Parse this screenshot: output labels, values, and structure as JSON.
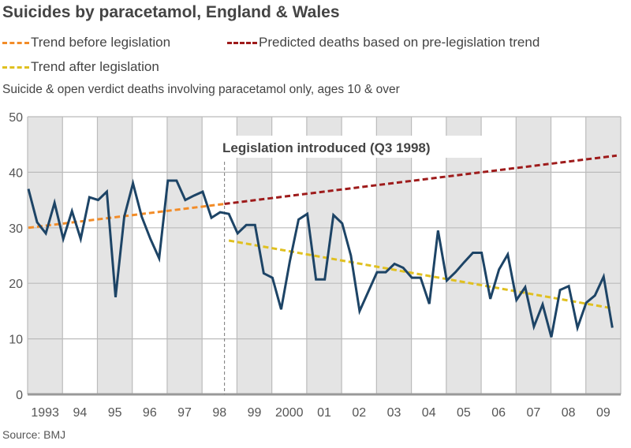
{
  "title": "Suicides by paracetamol, England & Wales",
  "subtitle": "Suicide & open verdict deaths involving paracetamol only, ages 10 & over",
  "source": "Source: BMJ",
  "colors": {
    "series": "#1d4466",
    "trend_before": "#f28c28",
    "predicted": "#9e1b1b",
    "trend_after": "#e0c020",
    "band": "#e4e4e4"
  },
  "chart_data": {
    "type": "line",
    "title": "Suicides by paracetamol, England & Wales",
    "ylim": [
      0,
      50
    ],
    "yticks": [
      0,
      10,
      20,
      30,
      40,
      50
    ],
    "xticklabels": [
      "1993",
      "94",
      "95",
      "96",
      "97",
      "98",
      "99",
      "2000",
      "01",
      "02",
      "03",
      "04",
      "05",
      "06",
      "07",
      "08",
      "09"
    ],
    "x_unit": "quarter, 1993 Q1 to 2009 Q4",
    "grid": true,
    "legend": {
      "position": "top",
      "entries": [
        "Trend before legislation",
        "Predicted deaths based on pre-legislation trend",
        "Trend after legislation"
      ]
    },
    "annotation": {
      "text": "Legislation introduced (Q3 1998)",
      "quarter_index": 22.5
    },
    "series": [
      {
        "values": [
          37,
          31,
          29,
          34.5,
          28,
          33,
          28,
          35.5,
          35,
          36.5,
          17.5,
          32,
          38,
          32,
          28,
          24.5,
          38.5,
          38.5,
          35,
          35.8,
          36.5,
          31.8,
          32.8,
          32.5,
          29,
          30.5,
          30.5,
          21.8,
          21,
          15.3,
          24,
          31.5,
          32.5,
          20.7,
          20.7,
          32.3,
          30.8,
          25,
          15,
          18.5,
          22,
          22,
          23.5,
          22.8,
          21,
          21,
          16.3,
          29.5,
          20.5,
          22,
          23.8,
          25.5,
          25.5,
          17.2,
          22.5,
          25.2,
          17,
          19.3,
          12.2,
          16.2,
          10.3,
          18.8,
          19.5,
          12,
          16.5,
          17.8,
          21.2,
          12
        ]
      }
    ],
    "trend_lines": [
      {
        "name": "Trend before legislation",
        "from": [
          0,
          30
        ],
        "to": [
          22.5,
          34.3
        ]
      },
      {
        "name": "Predicted deaths based on pre-legislation trend",
        "from": [
          22.5,
          34.3
        ],
        "to": [
          67.5,
          43
        ]
      },
      {
        "name": "Trend after legislation",
        "from": [
          23,
          27.7
        ],
        "to": [
          67,
          15.5
        ]
      }
    ]
  }
}
